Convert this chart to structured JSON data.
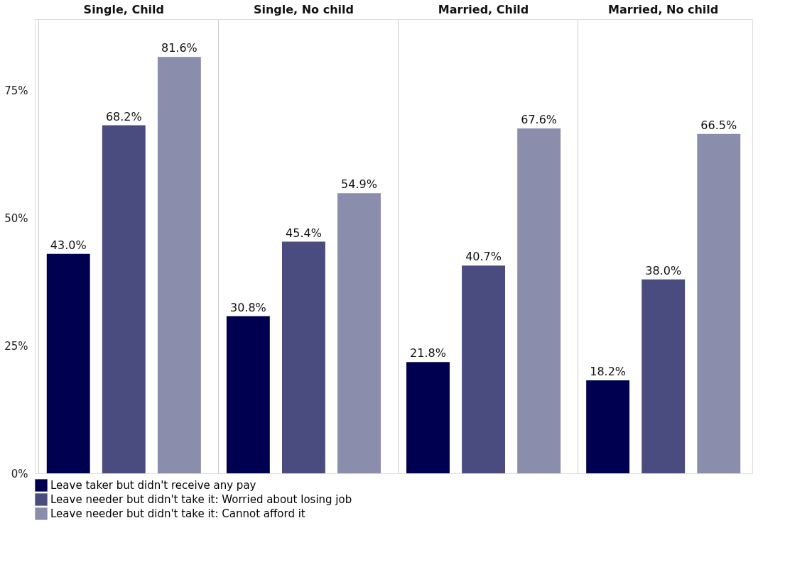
{
  "chart_data": {
    "type": "bar",
    "categories": [
      "Single, Child",
      "Single, No child",
      "Married, Child",
      "Married, No child"
    ],
    "series": [
      {
        "name": "Leave taker but didn't receive any pay",
        "color": "#000050",
        "values": [
          43.0,
          30.8,
          21.8,
          18.2
        ],
        "value_labels": [
          "43.0%",
          "30.8%",
          "21.8%",
          "18.2%"
        ]
      },
      {
        "name": "Leave needer but didn't take it: Worried about losing job",
        "color": "#4a4c80",
        "values": [
          68.2,
          45.4,
          40.7,
          38.0
        ],
        "value_labels": [
          "68.2%",
          "45.4%",
          "40.7%",
          "38.0%"
        ]
      },
      {
        "name": "Leave needer but didn't take it: Cannot afford it",
        "color": "#8a8dac",
        "values": [
          81.6,
          54.9,
          67.6,
          66.5
        ],
        "value_labels": [
          "81.6%",
          "54.9%",
          "67.6%",
          "66.5%"
        ]
      }
    ],
    "ylim": [
      0,
      89
    ],
    "yticks": [
      {
        "value": 0,
        "label": "0%"
      },
      {
        "value": 25,
        "label": "25%"
      },
      {
        "value": 50,
        "label": "50%"
      },
      {
        "value": 75,
        "label": "75%"
      }
    ],
    "grid": "x",
    "legend": "bottom left"
  }
}
